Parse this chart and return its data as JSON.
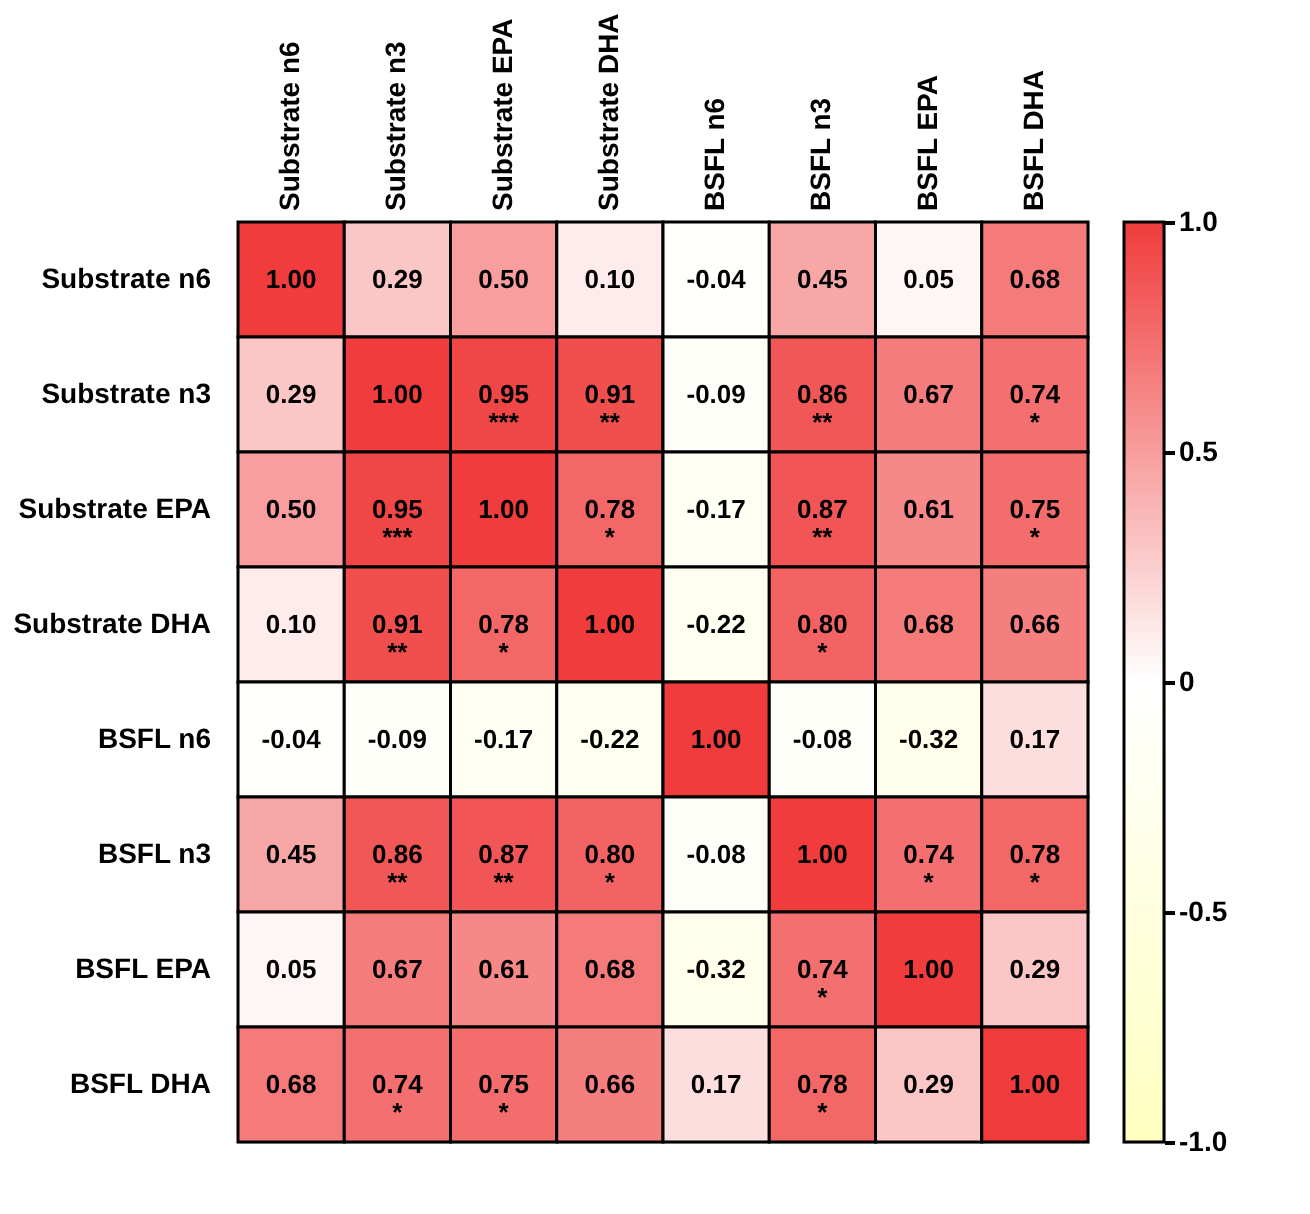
{
  "chart_data": {
    "type": "heatmap",
    "categories": [
      "Substrate n6",
      "Substrate n3",
      "Substrate EPA",
      "Substrate DHA",
      "BSFL n6",
      "BSFL n3",
      "BSFL EPA",
      "BSFL DHA"
    ],
    "y_categories": [
      "Substrate n6",
      "Substrate n3",
      "Substrate EPA",
      "Substrate DHA",
      "BSFL n6",
      "BSFL n3",
      "BSFL EPA",
      "BSFL DHA"
    ],
    "cells": [
      [
        1.0,
        0.29,
        0.5,
        0.1,
        -0.04,
        0.45,
        0.05,
        0.68
      ],
      [
        0.29,
        1.0,
        0.95,
        0.91,
        -0.09,
        0.86,
        0.67,
        0.74
      ],
      [
        0.5,
        0.95,
        1.0,
        0.78,
        -0.17,
        0.87,
        0.61,
        0.75
      ],
      [
        0.1,
        0.91,
        0.78,
        1.0,
        -0.22,
        0.8,
        0.68,
        0.66
      ],
      [
        -0.04,
        -0.09,
        -0.17,
        -0.22,
        1.0,
        -0.08,
        -0.32,
        0.17
      ],
      [
        0.45,
        0.86,
        0.87,
        0.8,
        -0.08,
        1.0,
        0.74,
        0.78
      ],
      [
        0.05,
        0.67,
        0.61,
        0.68,
        -0.32,
        0.74,
        1.0,
        0.29
      ],
      [
        0.68,
        0.74,
        0.75,
        0.66,
        0.17,
        0.78,
        0.29,
        1.0
      ]
    ],
    "cell_labels": [
      [
        "1.00",
        "0.29",
        "0.50",
        "0.10",
        "-0.04",
        "0.45",
        "0.05",
        "0.68"
      ],
      [
        "0.29",
        "1.00",
        "0.95\n***",
        "0.91\n**",
        "-0.09",
        "0.86\n**",
        "0.67",
        "0.74\n*"
      ],
      [
        "0.50",
        "0.95\n***",
        "1.00",
        "0.78\n*",
        "-0.17",
        "0.87\n**",
        "0.61",
        "0.75\n*"
      ],
      [
        "0.10",
        "0.91\n**",
        "0.78\n*",
        "1.00",
        "-0.22",
        "0.80\n*",
        "0.68",
        "0.66"
      ],
      [
        "-0.04",
        "-0.09",
        "-0.17",
        "-0.22",
        "1.00",
        "-0.08",
        "-0.32",
        "0.17"
      ],
      [
        "0.45",
        "0.86\n**",
        "0.87\n**",
        "0.80\n*",
        "-0.08",
        "1.00",
        "0.74\n*",
        "0.78\n*"
      ],
      [
        "0.05",
        "0.67",
        "0.61",
        "0.68",
        "-0.32",
        "0.74\n*",
        "1.00",
        "0.29"
      ],
      [
        "0.68",
        "0.74\n*",
        "0.75\n*",
        "0.66",
        "0.17",
        "0.78\n*",
        "0.29",
        "1.00"
      ]
    ],
    "clim": [
      -1,
      1
    ],
    "cticks": [
      {
        "value": 1,
        "label": "1.0"
      },
      {
        "value": 0.5,
        "label": "0.5"
      },
      0,
      {
        "value": -0.5,
        "label": "-0.5"
      },
      {
        "value": -1,
        "label": "-1.0"
      }
    ]
  }
}
